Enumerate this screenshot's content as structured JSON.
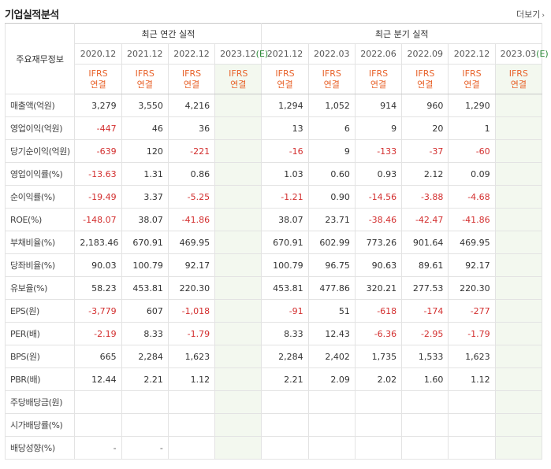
{
  "header": {
    "title": "기업실적분석",
    "more_label": "더보기"
  },
  "table": {
    "metric_header": "주요재무정보",
    "groups": [
      {
        "label": "최근 연간 실적",
        "span": 4
      },
      {
        "label": "최근 분기 실적",
        "span": 6
      }
    ],
    "periods": [
      {
        "label": "2020.12",
        "estimate": false
      },
      {
        "label": "2021.12",
        "estimate": false
      },
      {
        "label": "2022.12",
        "estimate": false
      },
      {
        "label": "2023.12",
        "suffix": "(E)",
        "estimate": true
      },
      {
        "label": "2021.12",
        "estimate": false
      },
      {
        "label": "2022.03",
        "estimate": false
      },
      {
        "label": "2022.06",
        "estimate": false
      },
      {
        "label": "2022.09",
        "estimate": false
      },
      {
        "label": "2022.12",
        "estimate": false
      },
      {
        "label": "2023.03",
        "suffix": "(E)",
        "estimate": true
      }
    ],
    "type_line1": "IFRS",
    "type_line2": "연결",
    "row_groups": [
      [
        {
          "label": "매출액(억원)",
          "values": [
            "3,279",
            "3,550",
            "4,216",
            "",
            "1,294",
            "1,052",
            "914",
            "960",
            "1,290",
            ""
          ]
        },
        {
          "label": "영업이익(억원)",
          "values": [
            "-447",
            "46",
            "36",
            "",
            "13",
            "6",
            "9",
            "20",
            "1",
            ""
          ]
        },
        {
          "label": "당기순이익(억원)",
          "values": [
            "-639",
            "120",
            "-221",
            "",
            "-16",
            "9",
            "-133",
            "-37",
            "-60",
            ""
          ]
        }
      ],
      [
        {
          "label": "영업이익률(%)",
          "values": [
            "-13.63",
            "1.31",
            "0.86",
            "",
            "1.03",
            "0.60",
            "0.93",
            "2.12",
            "0.09",
            ""
          ]
        },
        {
          "label": "순이익률(%)",
          "values": [
            "-19.49",
            "3.37",
            "-5.25",
            "",
            "-1.21",
            "0.90",
            "-14.56",
            "-3.88",
            "-4.68",
            ""
          ]
        },
        {
          "label": "ROE(%)",
          "values": [
            "-148.07",
            "38.07",
            "-41.86",
            "",
            "38.07",
            "23.71",
            "-38.46",
            "-42.47",
            "-41.86",
            ""
          ]
        }
      ],
      [
        {
          "label": "부채비율(%)",
          "values": [
            "2,183.46",
            "670.91",
            "469.95",
            "",
            "670.91",
            "602.99",
            "773.26",
            "901.64",
            "469.95",
            ""
          ]
        },
        {
          "label": "당좌비율(%)",
          "values": [
            "90.03",
            "100.79",
            "92.17",
            "",
            "100.79",
            "96.75",
            "90.63",
            "89.61",
            "92.17",
            ""
          ]
        },
        {
          "label": "유보율(%)",
          "values": [
            "58.23",
            "453.81",
            "220.30",
            "",
            "453.81",
            "477.86",
            "320.21",
            "277.53",
            "220.30",
            ""
          ]
        }
      ],
      [
        {
          "label": "EPS(원)",
          "values": [
            "-3,779",
            "607",
            "-1,018",
            "",
            "-91",
            "51",
            "-618",
            "-174",
            "-277",
            ""
          ]
        },
        {
          "label": "PER(배)",
          "values": [
            "-2.19",
            "8.33",
            "-1.79",
            "",
            "8.33",
            "12.43",
            "-6.36",
            "-2.95",
            "-1.79",
            ""
          ]
        },
        {
          "label": "BPS(원)",
          "values": [
            "665",
            "2,284",
            "1,623",
            "",
            "2,284",
            "2,402",
            "1,735",
            "1,533",
            "1,623",
            ""
          ]
        },
        {
          "label": "PBR(배)",
          "values": [
            "12.44",
            "2.21",
            "1.12",
            "",
            "2.21",
            "2.09",
            "2.02",
            "1.60",
            "1.12",
            ""
          ]
        }
      ],
      [
        {
          "label": "주당배당금(원)",
          "values": [
            "",
            "",
            "",
            "",
            "",
            "",
            "",
            "",
            "",
            ""
          ]
        },
        {
          "label": "시가배당률(%)",
          "values": [
            "",
            "",
            "",
            "",
            "",
            "",
            "",
            "",
            "",
            ""
          ]
        },
        {
          "label": "배당성향(%)",
          "values": [
            "-",
            "-",
            "",
            "",
            "",
            "",
            "",
            "",
            "",
            ""
          ]
        }
      ]
    ]
  }
}
